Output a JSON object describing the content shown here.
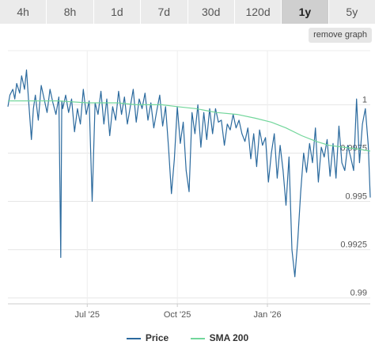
{
  "tabs": [
    {
      "label": "4h"
    },
    {
      "label": "8h"
    },
    {
      "label": "1d"
    },
    {
      "label": "7d"
    },
    {
      "label": "30d"
    },
    {
      "label": "120d"
    },
    {
      "label": "1y"
    },
    {
      "label": "5y"
    }
  ],
  "active_tab": "1y",
  "remove_graph_label": "remove graph",
  "colors": {
    "price": "#2b6a9e",
    "sma": "#72d69b"
  },
  "chart_data": {
    "type": "line",
    "x_tick_labels": [
      "Jul '25",
      "Oct '25",
      "Jan '26"
    ],
    "x_ticks": [
      "2025-07-01",
      "2025-10-01",
      "2026-01-01"
    ],
    "y_tick_labels": [
      "1",
      "0.9975",
      "0.995",
      "0.9925",
      "0.99"
    ],
    "y_ticks": [
      1.0,
      0.9975,
      0.995,
      0.9925,
      0.99
    ],
    "ylim": [
      0.9897,
      1.0028
    ],
    "xlim": [
      "2025-04-11",
      "2026-04-16"
    ],
    "grid": true,
    "legend_position": "bottom",
    "series": [
      {
        "name": "Price",
        "x": [
          "2025-04-11",
          "2025-04-13",
          "2025-04-16",
          "2025-04-18",
          "2025-04-20",
          "2025-04-23",
          "2025-04-25",
          "2025-04-28",
          "2025-04-30",
          "2025-05-02",
          "2025-05-05",
          "2025-05-07",
          "2025-05-09",
          "2025-05-12",
          "2025-05-15",
          "2025-05-18",
          "2025-05-21",
          "2025-05-24",
          "2025-05-27",
          "2025-05-30",
          "2025-06-02",
          "2025-06-04",
          "2025-06-05",
          "2025-06-06",
          "2025-06-09",
          "2025-06-12",
          "2025-06-15",
          "2025-06-18",
          "2025-06-21",
          "2025-06-24",
          "2025-06-27",
          "2025-06-30",
          "2025-07-03",
          "2025-07-06",
          "2025-07-09",
          "2025-07-12",
          "2025-07-15",
          "2025-07-18",
          "2025-07-21",
          "2025-07-24",
          "2025-07-27",
          "2025-07-30",
          "2025-08-02",
          "2025-08-05",
          "2025-08-08",
          "2025-08-11",
          "2025-08-14",
          "2025-08-17",
          "2025-08-20",
          "2025-08-23",
          "2025-08-26",
          "2025-08-29",
          "2025-09-01",
          "2025-09-04",
          "2025-09-07",
          "2025-09-10",
          "2025-09-13",
          "2025-09-16",
          "2025-09-19",
          "2025-09-22",
          "2025-09-25",
          "2025-09-28",
          "2025-10-01",
          "2025-10-04",
          "2025-10-07",
          "2025-10-10",
          "2025-10-13",
          "2025-10-16",
          "2025-10-19",
          "2025-10-22",
          "2025-10-25",
          "2025-10-28",
          "2025-10-31",
          "2025-11-03",
          "2025-11-06",
          "2025-11-09",
          "2025-11-12",
          "2025-11-15",
          "2025-11-18",
          "2025-11-21",
          "2025-11-24",
          "2025-11-27",
          "2025-11-30",
          "2025-12-03",
          "2025-12-06",
          "2025-12-09",
          "2025-12-12",
          "2025-12-15",
          "2025-12-18",
          "2025-12-21",
          "2025-12-24",
          "2025-12-27",
          "2025-12-30",
          "2026-01-02",
          "2026-01-05",
          "2026-01-08",
          "2026-01-11",
          "2026-01-14",
          "2026-01-17",
          "2026-01-20",
          "2026-01-23",
          "2026-01-26",
          "2026-01-29",
          "2026-02-01",
          "2026-02-04",
          "2026-02-07",
          "2026-02-10",
          "2026-02-13",
          "2026-02-16",
          "2026-02-19",
          "2026-02-22",
          "2026-02-25",
          "2026-02-28",
          "2026-03-03",
          "2026-03-06",
          "2026-03-09",
          "2026-03-12",
          "2026-03-15",
          "2026-03-18",
          "2026-03-21",
          "2026-03-24",
          "2026-03-27",
          "2026-03-30",
          "2026-04-02",
          "2026-04-05",
          "2026-04-08",
          "2026-04-11",
          "2026-04-14",
          "2026-04-16"
        ],
        "values": [
          0.9999,
          1.0005,
          1.0008,
          1.0003,
          1.0011,
          1.0006,
          1.0015,
          1.0008,
          1.0018,
          1.0003,
          0.9982,
          0.9998,
          1.0005,
          0.9992,
          1.001,
          1.0003,
          0.9996,
          1.0008,
          1.0001,
          0.9995,
          1.0004,
          0.9921,
          1.0002,
          0.9998,
          1.0005,
          0.9996,
          1.0003,
          0.9986,
          0.9998,
          0.999,
          1.0008,
          0.9995,
          1.0002,
          0.995,
          1.0001,
          0.9995,
          1.0007,
          0.999,
          1.0003,
          0.9984,
          0.9999,
          0.9992,
          1.0007,
          0.9995,
          1.0004,
          0.999,
          0.9999,
          1.0008,
          0.9991,
          1.0003,
          0.9998,
          1.0006,
          0.9992,
          1.0001,
          0.9988,
          0.9997,
          1.0005,
          0.9989,
          0.9999,
          0.9978,
          0.9954,
          0.9972,
          0.9999,
          0.998,
          0.9991,
          0.9966,
          0.9955,
          0.9996,
          0.9985,
          1.0,
          0.9978,
          0.9996,
          0.9982,
          0.9998,
          0.9985,
          0.9998,
          0.9991,
          0.9992,
          0.9979,
          0.999,
          0.9987,
          0.9995,
          0.9988,
          0.9992,
          0.9985,
          0.9981,
          0.9988,
          0.9972,
          0.9985,
          0.9968,
          0.9987,
          0.9979,
          0.9983,
          0.996,
          0.9975,
          0.9985,
          0.9962,
          0.9979,
          0.9966,
          0.9948,
          0.9973,
          0.9925,
          0.9911,
          0.993,
          0.9955,
          0.9975,
          0.9965,
          0.998,
          0.997,
          0.9988,
          0.996,
          0.9978,
          0.9973,
          0.9982,
          0.9963,
          0.998,
          0.9962,
          0.9989,
          0.997,
          0.9966,
          0.9979,
          0.9973,
          0.9966,
          1.0003,
          0.997,
          0.999,
          0.9998,
          0.9979,
          0.9952
        ]
      },
      {
        "name": "SMA 200",
        "x": [
          "2025-04-11",
          "2025-05-01",
          "2025-06-01",
          "2025-07-01",
          "2025-08-01",
          "2025-08-20",
          "2025-09-15",
          "2025-10-01",
          "2025-10-20",
          "2025-11-10",
          "2025-12-01",
          "2025-12-20",
          "2026-01-05",
          "2026-01-20",
          "2026-02-05",
          "2026-02-20",
          "2026-03-05",
          "2026-03-20",
          "2026-04-05",
          "2026-04-16"
        ],
        "values": [
          1.0002,
          1.0002,
          1.0002,
          1.0001,
          1.0001,
          1.0,
          1.0,
          0.9999,
          0.9998,
          0.9996,
          0.9995,
          0.9993,
          0.9991,
          0.9988,
          0.9984,
          0.9981,
          0.9979,
          0.9978,
          0.9977,
          0.9976
        ]
      }
    ]
  }
}
